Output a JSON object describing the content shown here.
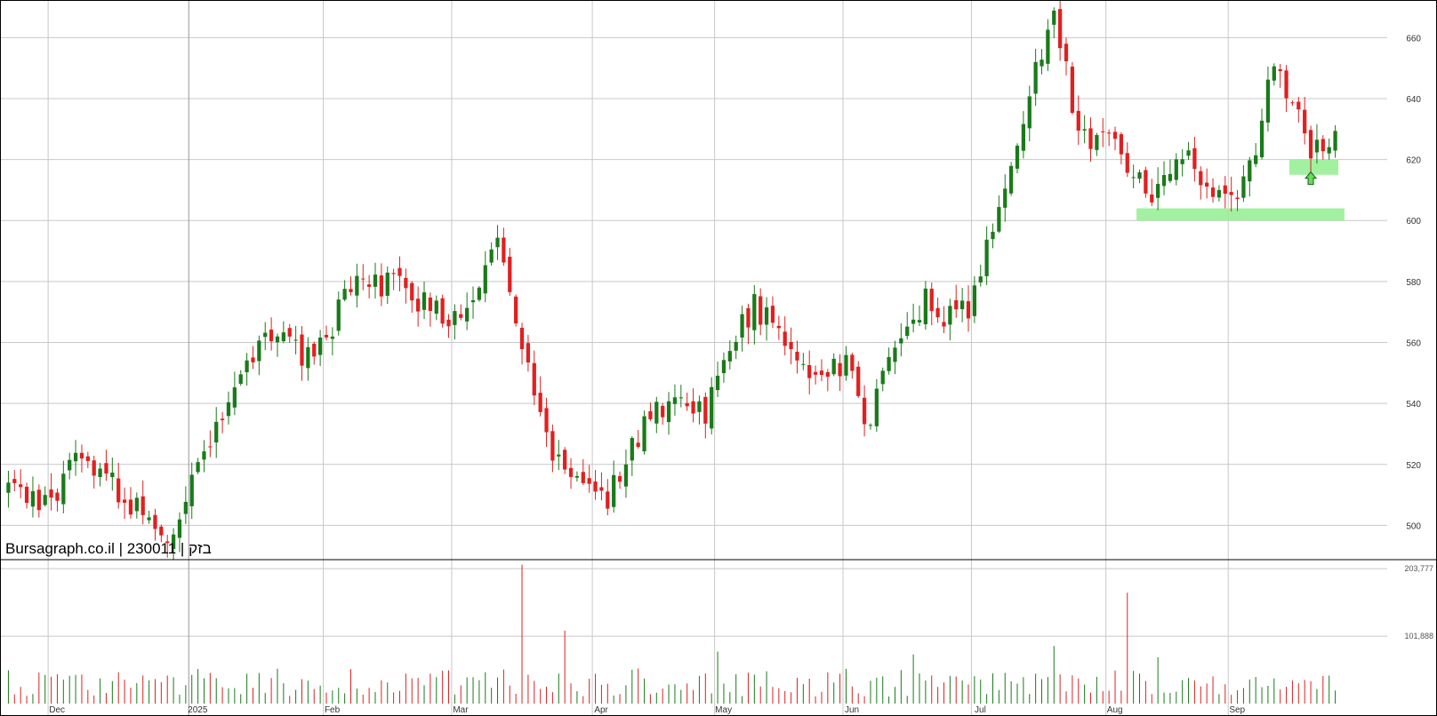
{
  "watermark": {
    "site": "Bursagraph.co.il",
    "code": "230011",
    "name": "בזק",
    "separator": " | "
  },
  "colors": {
    "up": "#1a7a1a",
    "down": "#e02020",
    "grid": "#c8c8c8",
    "zone": "#90ee90",
    "arrow": "#66dd55"
  },
  "chart_data": {
    "type": "candlestick",
    "title": "",
    "price_axis": {
      "ticks": [
        500,
        520,
        540,
        560,
        580,
        600,
        620,
        640,
        660
      ],
      "range": [
        494,
        670
      ],
      "position": "right"
    },
    "volume_axis": {
      "ticks": [
        "101,888",
        "203,777"
      ],
      "tick_values": [
        101888,
        203777
      ],
      "range": [
        0,
        212000
      ]
    },
    "x_labels": [
      "Dec",
      "2025",
      "Feb",
      "Mar",
      "Apr",
      "May",
      "Jun",
      "Jul",
      "Aug",
      "Sep"
    ],
    "x_label_bar_index": [
      7,
      30,
      52,
      73,
      96,
      116,
      137,
      158,
      180,
      200
    ],
    "grid": true,
    "support_zones": [
      {
        "from_bar": 185,
        "to_bar": 218,
        "low": 600,
        "high": 604
      },
      {
        "from_bar": 210,
        "to_bar": 217,
        "low": 615,
        "high": 620
      }
    ],
    "marker": {
      "type": "up-arrow",
      "bar": 213,
      "price": 613
    },
    "price_start": 511,
    "waypoints": [
      [
        0,
        511
      ],
      [
        6,
        509
      ],
      [
        13,
        523
      ],
      [
        20,
        508
      ],
      [
        26,
        497
      ],
      [
        33,
        530
      ],
      [
        38,
        553
      ],
      [
        42,
        562
      ],
      [
        50,
        555
      ],
      [
        57,
        580
      ],
      [
        63,
        580
      ],
      [
        69,
        572
      ],
      [
        73,
        566
      ],
      [
        77,
        582
      ],
      [
        80,
        594
      ],
      [
        83,
        565
      ],
      [
        88,
        528
      ],
      [
        92,
        517
      ],
      [
        98,
        508
      ],
      [
        105,
        536
      ],
      [
        110,
        538
      ],
      [
        114,
        538
      ],
      [
        118,
        558
      ],
      [
        122,
        572
      ],
      [
        126,
        562
      ],
      [
        131,
        551
      ],
      [
        137,
        553
      ],
      [
        141,
        533
      ],
      [
        145,
        563
      ],
      [
        150,
        573
      ],
      [
        155,
        567
      ],
      [
        157,
        572
      ],
      [
        160,
        590
      ],
      [
        163,
        612
      ],
      [
        166,
        634
      ],
      [
        169,
        655
      ],
      [
        171,
        665
      ],
      [
        174,
        640
      ],
      [
        177,
        622
      ],
      [
        181,
        628
      ],
      [
        185,
        612
      ],
      [
        187,
        605
      ],
      [
        190,
        618
      ],
      [
        193,
        619
      ],
      [
        197,
        608
      ],
      [
        201,
        610
      ],
      [
        204,
        625
      ],
      [
        207,
        650
      ],
      [
        211,
        632
      ],
      [
        214,
        622
      ],
      [
        217,
        628
      ]
    ],
    "spikes": [
      [
        84,
        0.99
      ],
      [
        91,
        0.52
      ],
      [
        171,
        0.41
      ],
      [
        183,
        0.79
      ],
      [
        116,
        0.37
      ],
      [
        148,
        0.35
      ],
      [
        188,
        0.33
      ]
    ]
  }
}
